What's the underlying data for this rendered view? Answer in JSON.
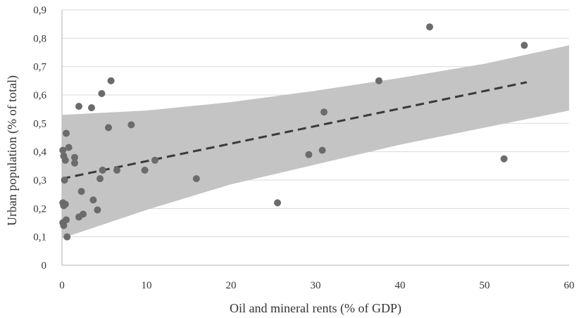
{
  "chart_data": {
    "type": "scatter",
    "xlabel": "Oil and mineral rents (% of GDP)",
    "ylabel": "Urban population (% of total)",
    "xlim": [
      0,
      60
    ],
    "ylim": [
      0,
      0.9
    ],
    "x_ticks": [
      "0",
      "10",
      "20",
      "30",
      "40",
      "50",
      "60"
    ],
    "y_ticks": [
      "0",
      "0,1",
      "0,2",
      "0,3",
      "0,4",
      "0,5",
      "0,6",
      "0,7",
      "0,8",
      "0,9"
    ],
    "grid": "horizontal",
    "points": [
      {
        "x": 0.1,
        "y": 0.405
      },
      {
        "x": 0.2,
        "y": 0.385
      },
      {
        "x": 0.4,
        "y": 0.37
      },
      {
        "x": 0.5,
        "y": 0.465
      },
      {
        "x": 0.3,
        "y": 0.3
      },
      {
        "x": 0.1,
        "y": 0.22
      },
      {
        "x": 0.2,
        "y": 0.21
      },
      {
        "x": 0.4,
        "y": 0.215
      },
      {
        "x": 0.1,
        "y": 0.15
      },
      {
        "x": 0.2,
        "y": 0.14
      },
      {
        "x": 0.5,
        "y": 0.16
      },
      {
        "x": 0.6,
        "y": 0.1
      },
      {
        "x": 0.8,
        "y": 0.415
      },
      {
        "x": 1.5,
        "y": 0.38
      },
      {
        "x": 1.5,
        "y": 0.36
      },
      {
        "x": 2.0,
        "y": 0.56
      },
      {
        "x": 2.3,
        "y": 0.26
      },
      {
        "x": 2.5,
        "y": 0.18
      },
      {
        "x": 2.0,
        "y": 0.17
      },
      {
        "x": 3.5,
        "y": 0.555
      },
      {
        "x": 3.7,
        "y": 0.23
      },
      {
        "x": 4.2,
        "y": 0.195
      },
      {
        "x": 4.5,
        "y": 0.305
      },
      {
        "x": 4.7,
        "y": 0.605
      },
      {
        "x": 4.8,
        "y": 0.335
      },
      {
        "x": 5.5,
        "y": 0.485
      },
      {
        "x": 5.8,
        "y": 0.65
      },
      {
        "x": 6.5,
        "y": 0.335
      },
      {
        "x": 8.2,
        "y": 0.495
      },
      {
        "x": 9.8,
        "y": 0.335
      },
      {
        "x": 11.0,
        "y": 0.37
      },
      {
        "x": 15.9,
        "y": 0.305
      },
      {
        "x": 25.5,
        "y": 0.22
      },
      {
        "x": 29.2,
        "y": 0.39
      },
      {
        "x": 30.8,
        "y": 0.405
      },
      {
        "x": 31.0,
        "y": 0.54
      },
      {
        "x": 37.5,
        "y": 0.65
      },
      {
        "x": 43.5,
        "y": 0.84
      },
      {
        "x": 52.3,
        "y": 0.375
      },
      {
        "x": 54.7,
        "y": 0.775
      }
    ],
    "trend_line": {
      "x": [
        0,
        55
      ],
      "y": [
        0.305,
        0.645
      ]
    },
    "confidence_band": {
      "x": [
        0,
        10,
        20,
        30,
        40,
        50,
        60
      ],
      "lower": [
        0.095,
        0.195,
        0.285,
        0.355,
        0.425,
        0.485,
        0.545
      ],
      "upper": [
        0.53,
        0.545,
        0.575,
        0.615,
        0.66,
        0.71,
        0.775
      ]
    },
    "colors": {
      "points": "#6b6b6b",
      "band": "#c4c4c4",
      "trend": "#3a3a3a",
      "grid": "#d9d9d9",
      "axis": "#bfbfbf"
    }
  }
}
